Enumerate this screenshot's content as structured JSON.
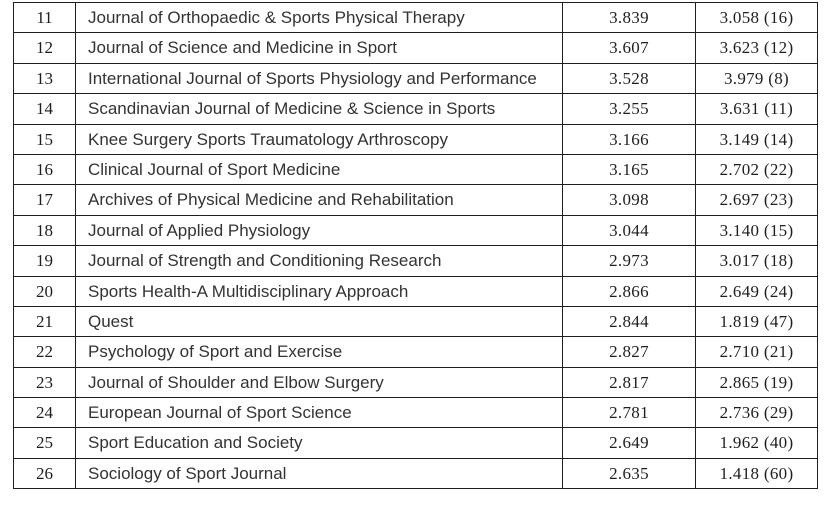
{
  "page": {
    "background_color": "#ffffff",
    "text_color": "#2a2a2a",
    "border_color": "#1f1f1f",
    "description": "Document table listing sports-science journals ranked by impact factor (rows 11-26 visible, last row cut off at bottom)"
  },
  "table": {
    "visible_columns": [
      "rank",
      "journal",
      "impact_factor",
      "impact_factor_with_rank"
    ],
    "rows": [
      {
        "rank": "11",
        "journal": "Journal of Orthopaedic & Sports Physical Therapy",
        "impact_factor": "3.839",
        "if_with_rank": "3.058 (16)"
      },
      {
        "rank": "12",
        "journal": "Journal of Science and Medicine in Sport",
        "impact_factor": "3.607",
        "if_with_rank": "3.623 (12)"
      },
      {
        "rank": "13",
        "journal": "International Journal of Sports Physiology and Performance",
        "impact_factor": "3.528",
        "if_with_rank": "3.979 (8)"
      },
      {
        "rank": "14",
        "journal": "Scandinavian Journal of Medicine & Science in Sports",
        "impact_factor": "3.255",
        "if_with_rank": "3.631 (11)"
      },
      {
        "rank": "15",
        "journal": "Knee Surgery Sports Traumatology Arthroscopy",
        "impact_factor": "3.166",
        "if_with_rank": "3.149 (14)"
      },
      {
        "rank": "16",
        "journal": "Clinical Journal of Sport Medicine",
        "impact_factor": "3.165",
        "if_with_rank": "2.702 (22)"
      },
      {
        "rank": "17",
        "journal": "Archives of Physical Medicine and Rehabilitation",
        "impact_factor": "3.098",
        "if_with_rank": "2.697 (23)"
      },
      {
        "rank": "18",
        "journal": "Journal of Applied Physiology",
        "impact_factor": "3.044",
        "if_with_rank": "3.140 (15)"
      },
      {
        "rank": "19",
        "journal": "Journal of Strength and Conditioning Research",
        "impact_factor": "2.973",
        "if_with_rank": "3.017 (18)"
      },
      {
        "rank": "20",
        "journal": "Sports Health-A Multidisciplinary Approach",
        "impact_factor": "2.866",
        "if_with_rank": "2.649 (24)"
      },
      {
        "rank": "21",
        "journal": "Quest",
        "impact_factor": "2.844",
        "if_with_rank": "1.819 (47)"
      },
      {
        "rank": "22",
        "journal": "Psychology of Sport and Exercise",
        "impact_factor": "2.827",
        "if_with_rank": "2.710 (21)"
      },
      {
        "rank": "23",
        "journal": "Journal of Shoulder and Elbow Surgery",
        "impact_factor": "2.817",
        "if_with_rank": "2.865 (19)"
      },
      {
        "rank": "24",
        "journal": "European Journal of Sport Science",
        "impact_factor": "2.781",
        "if_with_rank": "2.736 (29)"
      },
      {
        "rank": "25",
        "journal": "Sport Education and Society",
        "impact_factor": "2.649",
        "if_with_rank": "1.962 (40)"
      },
      {
        "rank": "26",
        "journal": "Sociology of Sport Journal",
        "impact_factor": "2.635",
        "if_with_rank": "1.418 (60)"
      }
    ]
  }
}
